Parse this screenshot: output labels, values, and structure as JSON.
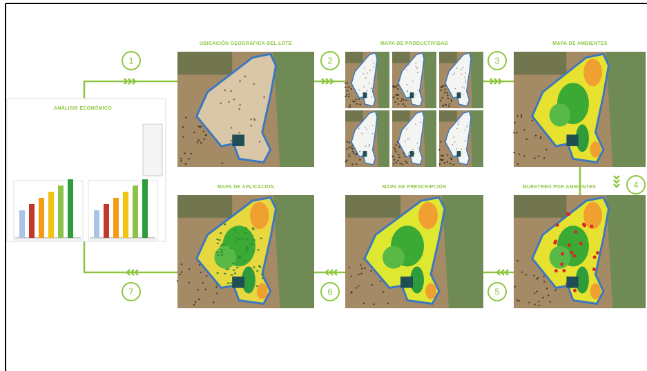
{
  "steps": [
    "1",
    "2",
    "3",
    "4",
    "5",
    "6",
    "7"
  ],
  "panels": {
    "location": "UBICACIÓN GEOGRÁFICA DEL LOTE",
    "productivity": "MAPA DE PRODUCTIVIDAD",
    "environments": "MAPA DE AMBIENTES",
    "sampling": "MUESTREO POR AMBIENTES",
    "prescription": "MAPA DE PRESCRIPCIÓN",
    "application": "MAPA DE APLICACIÓN",
    "economic": "ANÁLISIS ECONÓMICO"
  }
}
